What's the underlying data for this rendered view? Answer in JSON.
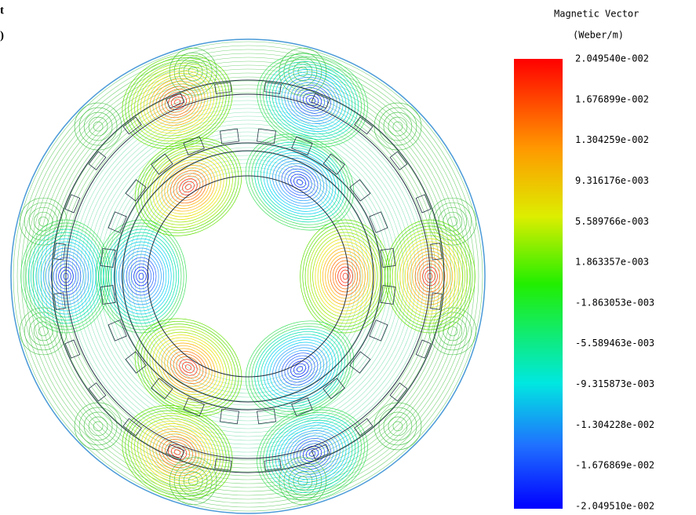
{
  "cropped_text": [
    "t",
    ")"
  ],
  "legend": {
    "title": "Magnetic Vector",
    "unit": "(Weber/m)",
    "labels": [
      "2.049540e-002",
      "1.676899e-002",
      "1.304259e-002",
      "9.316176e-003",
      "5.589766e-003",
      "1.863357e-003",
      "-1.863053e-003",
      "-5.589463e-003",
      "-9.315873e-003",
      "-1.304228e-002",
      "-1.676869e-002",
      "-2.049510e-002"
    ]
  }
}
